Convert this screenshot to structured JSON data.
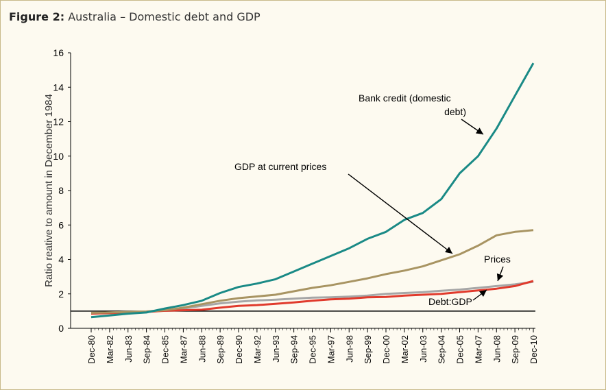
{
  "figure": {
    "label": "Figure 2:",
    "caption": "Australia – Domestic debt and GDP"
  },
  "chart_data": {
    "type": "line",
    "xlabel": "",
    "ylabel": "Ratio reative to amount in December 1984",
    "ylim": [
      0,
      16
    ],
    "yticks": [
      "0",
      "2",
      "4",
      "6",
      "8",
      "10",
      "12",
      "14",
      "16"
    ],
    "xtick_labels": [
      "Dec-80",
      "Mar-82",
      "Jun-83",
      "Sep-84",
      "Dec-85",
      "Mar-87",
      "Jun-88",
      "Sep-89",
      "Dec-90",
      "Mar-92",
      "Jun-93",
      "Sep-94",
      "Dec-95",
      "Mar-97",
      "Jun-98",
      "Sep-99",
      "Dec-00",
      "Mar-02",
      "Jun-03",
      "Sep-04",
      "Dec-05",
      "Mar-07",
      "Jun-08",
      "Sep-09",
      "Dec-10"
    ],
    "x": [
      "Dec-80",
      "Mar-82",
      "Jun-83",
      "Sep-84",
      "Dec-85",
      "Mar-87",
      "Jun-88",
      "Sep-89",
      "Dec-90",
      "Mar-92",
      "Jun-93",
      "Sep-94",
      "Dec-95",
      "Mar-97",
      "Jun-98",
      "Sep-99",
      "Dec-00",
      "Mar-02",
      "Jun-03",
      "Sep-04",
      "Dec-05",
      "Mar-07",
      "Jun-08",
      "Sep-09",
      "Dec-10"
    ],
    "reference_line": 1,
    "grid": false,
    "legend": "none",
    "series": [
      {
        "name": "Bank credit (domestic debt)",
        "color": "#1a8a86",
        "values": [
          0.65,
          0.75,
          0.85,
          0.92,
          1.15,
          1.35,
          1.6,
          2.05,
          2.4,
          2.6,
          2.85,
          3.3,
          3.75,
          4.2,
          4.65,
          5.2,
          5.6,
          6.3,
          6.7,
          7.5,
          9.0,
          10.0,
          11.6,
          13.5,
          15.4
        ]
      },
      {
        "name": "GDP at current prices",
        "color": "#a89462",
        "values": [
          0.9,
          0.92,
          0.95,
          0.98,
          1.05,
          1.2,
          1.4,
          1.6,
          1.75,
          1.85,
          1.95,
          2.15,
          2.35,
          2.5,
          2.7,
          2.9,
          3.15,
          3.35,
          3.6,
          3.95,
          4.3,
          4.8,
          5.4,
          5.6,
          5.7
        ]
      },
      {
        "name": "Prices",
        "color": "#a6a6a6",
        "values": [
          0.9,
          0.92,
          0.95,
          0.98,
          1.05,
          1.15,
          1.3,
          1.45,
          1.55,
          1.62,
          1.66,
          1.72,
          1.78,
          1.8,
          1.84,
          1.9,
          2.0,
          2.05,
          2.1,
          2.18,
          2.25,
          2.35,
          2.45,
          2.55,
          2.7
        ]
      },
      {
        "name": "Debt:GDP",
        "color": "#e03a2c",
        "values": [
          0.85,
          0.88,
          0.9,
          0.95,
          1.02,
          1.05,
          1.08,
          1.2,
          1.3,
          1.35,
          1.42,
          1.5,
          1.6,
          1.68,
          1.72,
          1.8,
          1.82,
          1.9,
          1.95,
          2.0,
          2.1,
          2.2,
          2.3,
          2.45,
          2.75
        ]
      }
    ],
    "annotations": [
      {
        "lines": [
          "Bank credit (domestic",
          "debt)"
        ],
        "series": "Bank credit (domestic debt)"
      },
      {
        "lines": [
          "GDP at current prices"
        ],
        "series": "GDP at current prices"
      },
      {
        "lines": [
          "Prices"
        ],
        "series": "Prices"
      },
      {
        "lines": [
          "Debt:GDP"
        ],
        "series": "Debt:GDP"
      }
    ]
  }
}
